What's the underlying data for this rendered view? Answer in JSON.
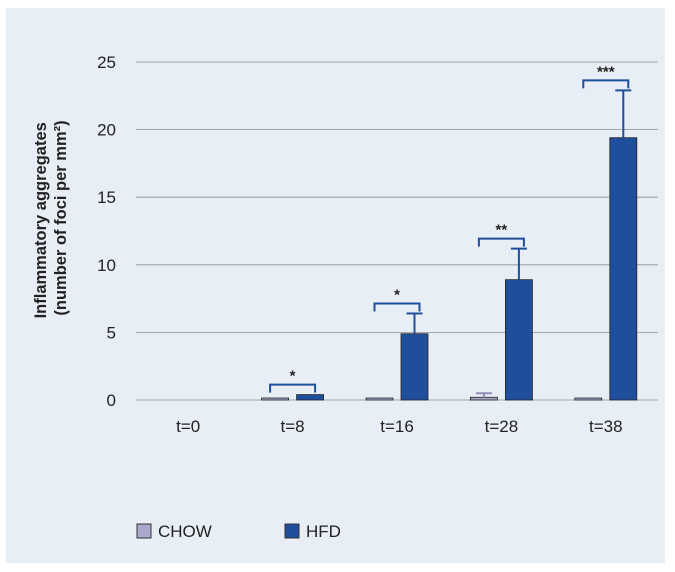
{
  "chart_data": {
    "type": "bar",
    "title": "",
    "ylabel": "Inflammatory aggregates (number of foci per mm²)",
    "ylabel_lines": [
      "Inflammatory aggregates",
      "(number of foci per mm²)"
    ],
    "xlabel": "",
    "categories": [
      "t=0",
      "t=8",
      "t=16",
      "t=28",
      "t=38"
    ],
    "yticks": [
      0,
      5,
      10,
      15,
      20,
      25
    ],
    "ylim": [
      0,
      25
    ],
    "grid": true,
    "legend_position": "bottom-left",
    "series": [
      {
        "name": "CHOW",
        "color": "#a9a9d0",
        "values": [
          0,
          0.1,
          0.1,
          0.2,
          0.1
        ],
        "errors": [
          0,
          0,
          0,
          0.3,
          0
        ]
      },
      {
        "name": "HFD",
        "color": "#1f4f9c",
        "values": [
          0,
          0.4,
          4.9,
          8.9,
          19.4
        ],
        "errors": [
          0,
          0,
          1.5,
          2.3,
          3.5
        ]
      }
    ],
    "significance": [
      "",
      "*",
      "*",
      "**",
      "***"
    ]
  }
}
